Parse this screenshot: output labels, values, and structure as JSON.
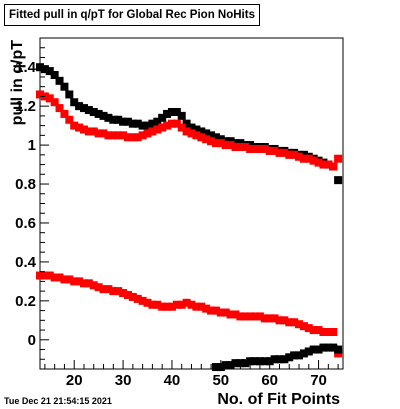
{
  "title": "Fitted pull in q/pT for Global Rec Pion NoHits",
  "timestamp": "Tue Dec 21 21:54:15 2021",
  "chart_data": {
    "type": "scatter",
    "title": "Fitted pull in q/pT for Global Rec Pion NoHits",
    "xlabel": "No. of Fit Points",
    "ylabel": "pull in q/pT",
    "xlim": [
      13,
      75
    ],
    "ylim": [
      -0.15,
      1.55
    ],
    "x_ticks": [
      "20",
      "30",
      "40",
      "50",
      "60",
      "70"
    ],
    "y_ticks": [
      "0",
      "0.2",
      "0.4",
      "0.6",
      "0.8",
      "1",
      "1.2",
      "1.4"
    ],
    "grid": false,
    "legend": "none",
    "series": [
      {
        "color": "#000000",
        "marker": "square",
        "points": [
          [
            13,
            1.4
          ],
          [
            14,
            1.39
          ],
          [
            15,
            1.38
          ],
          [
            16,
            1.36
          ],
          [
            17,
            1.33
          ],
          [
            18,
            1.3
          ],
          [
            19,
            1.26
          ],
          [
            20,
            1.22
          ],
          [
            21,
            1.2
          ],
          [
            22,
            1.19
          ],
          [
            23,
            1.18
          ],
          [
            24,
            1.17
          ],
          [
            25,
            1.16
          ],
          [
            26,
            1.15
          ],
          [
            27,
            1.14
          ],
          [
            28,
            1.13
          ],
          [
            29,
            1.13
          ],
          [
            30,
            1.12
          ],
          [
            31,
            1.12
          ],
          [
            32,
            1.11
          ],
          [
            33,
            1.11
          ],
          [
            34,
            1.1
          ],
          [
            35,
            1.1
          ],
          [
            36,
            1.11
          ],
          [
            37,
            1.12
          ],
          [
            38,
            1.14
          ],
          [
            39,
            1.16
          ],
          [
            40,
            1.17
          ],
          [
            41,
            1.17
          ],
          [
            42,
            1.15
          ],
          [
            43,
            1.11
          ],
          [
            44,
            1.09
          ],
          [
            45,
            1.08
          ],
          [
            46,
            1.07
          ],
          [
            47,
            1.06
          ],
          [
            48,
            1.05
          ],
          [
            49,
            1.04
          ],
          [
            50,
            1.03
          ],
          [
            51,
            1.02
          ],
          [
            52,
            1.02
          ],
          [
            53,
            1.01
          ],
          [
            54,
            1.01
          ],
          [
            55,
            1.0
          ],
          [
            56,
            1.0
          ],
          [
            57,
            0.99
          ],
          [
            58,
            0.99
          ],
          [
            59,
            0.99
          ],
          [
            60,
            0.98
          ],
          [
            61,
            0.98
          ],
          [
            62,
            0.97
          ],
          [
            63,
            0.97
          ],
          [
            64,
            0.96
          ],
          [
            65,
            0.96
          ],
          [
            66,
            0.95
          ],
          [
            67,
            0.95
          ],
          [
            68,
            0.94
          ],
          [
            69,
            0.93
          ],
          [
            70,
            0.92
          ],
          [
            71,
            0.91
          ],
          [
            72,
            0.9
          ],
          [
            73,
            0.89
          ],
          [
            74,
            0.82
          ]
        ]
      },
      {
        "color": "#ff0000",
        "marker": "square",
        "points": [
          [
            13,
            1.26
          ],
          [
            14,
            1.25
          ],
          [
            15,
            1.24
          ],
          [
            16,
            1.22
          ],
          [
            17,
            1.19
          ],
          [
            18,
            1.16
          ],
          [
            19,
            1.13
          ],
          [
            20,
            1.1
          ],
          [
            21,
            1.09
          ],
          [
            22,
            1.08
          ],
          [
            23,
            1.07
          ],
          [
            24,
            1.07
          ],
          [
            25,
            1.06
          ],
          [
            26,
            1.06
          ],
          [
            27,
            1.05
          ],
          [
            28,
            1.05
          ],
          [
            29,
            1.05
          ],
          [
            30,
            1.05
          ],
          [
            31,
            1.04
          ],
          [
            32,
            1.04
          ],
          [
            33,
            1.04
          ],
          [
            34,
            1.05
          ],
          [
            35,
            1.06
          ],
          [
            36,
            1.07
          ],
          [
            37,
            1.08
          ],
          [
            38,
            1.09
          ],
          [
            39,
            1.1
          ],
          [
            40,
            1.11
          ],
          [
            41,
            1.11
          ],
          [
            42,
            1.09
          ],
          [
            43,
            1.07
          ],
          [
            44,
            1.06
          ],
          [
            45,
            1.05
          ],
          [
            46,
            1.04
          ],
          [
            47,
            1.03
          ],
          [
            48,
            1.02
          ],
          [
            49,
            1.01
          ],
          [
            50,
            1.01
          ],
          [
            51,
            1.0
          ],
          [
            52,
            1.0
          ],
          [
            53,
            0.99
          ],
          [
            54,
            0.99
          ],
          [
            55,
            0.99
          ],
          [
            56,
            0.98
          ],
          [
            57,
            0.98
          ],
          [
            58,
            0.98
          ],
          [
            59,
            0.98
          ],
          [
            60,
            0.97
          ],
          [
            61,
            0.97
          ],
          [
            62,
            0.96
          ],
          [
            63,
            0.96
          ],
          [
            64,
            0.95
          ],
          [
            65,
            0.95
          ],
          [
            66,
            0.94
          ],
          [
            67,
            0.93
          ],
          [
            68,
            0.93
          ],
          [
            69,
            0.92
          ],
          [
            70,
            0.91
          ],
          [
            71,
            0.9
          ],
          [
            72,
            0.9
          ],
          [
            73,
            0.89
          ],
          [
            74,
            0.93
          ]
        ]
      },
      {
        "color": "#ff0000",
        "marker": "square",
        "points": [
          [
            13,
            0.33
          ],
          [
            14,
            0.33
          ],
          [
            15,
            0.33
          ],
          [
            16,
            0.32
          ],
          [
            17,
            0.32
          ],
          [
            18,
            0.31
          ],
          [
            19,
            0.31
          ],
          [
            20,
            0.3
          ],
          [
            21,
            0.3
          ],
          [
            22,
            0.29
          ],
          [
            23,
            0.29
          ],
          [
            24,
            0.28
          ],
          [
            25,
            0.27
          ],
          [
            26,
            0.26
          ],
          [
            27,
            0.26
          ],
          [
            28,
            0.25
          ],
          [
            29,
            0.25
          ],
          [
            30,
            0.24
          ],
          [
            31,
            0.23
          ],
          [
            32,
            0.22
          ],
          [
            33,
            0.21
          ],
          [
            34,
            0.2
          ],
          [
            35,
            0.19
          ],
          [
            36,
            0.18
          ],
          [
            37,
            0.18
          ],
          [
            38,
            0.17
          ],
          [
            39,
            0.17
          ],
          [
            40,
            0.17
          ],
          [
            41,
            0.18
          ],
          [
            42,
            0.18
          ],
          [
            43,
            0.19
          ],
          [
            44,
            0.18
          ],
          [
            45,
            0.17
          ],
          [
            46,
            0.17
          ],
          [
            47,
            0.16
          ],
          [
            48,
            0.15
          ],
          [
            49,
            0.15
          ],
          [
            50,
            0.14
          ],
          [
            51,
            0.14
          ],
          [
            52,
            0.13
          ],
          [
            53,
            0.13
          ],
          [
            54,
            0.12
          ],
          [
            55,
            0.12
          ],
          [
            56,
            0.12
          ],
          [
            57,
            0.12
          ],
          [
            58,
            0.12
          ],
          [
            59,
            0.11
          ],
          [
            60,
            0.11
          ],
          [
            61,
            0.11
          ],
          [
            62,
            0.1
          ],
          [
            63,
            0.1
          ],
          [
            64,
            0.09
          ],
          [
            65,
            0.09
          ],
          [
            66,
            0.08
          ],
          [
            67,
            0.07
          ],
          [
            68,
            0.06
          ],
          [
            69,
            0.05
          ],
          [
            70,
            0.05
          ],
          [
            71,
            0.04
          ],
          [
            72,
            0.04
          ],
          [
            73,
            0.04
          ],
          [
            74,
            -0.07
          ]
        ]
      },
      {
        "color": "#000000",
        "marker": "square",
        "points": [
          [
            49,
            -0.14
          ],
          [
            50,
            -0.14
          ],
          [
            51,
            -0.13
          ],
          [
            52,
            -0.13
          ],
          [
            53,
            -0.12
          ],
          [
            54,
            -0.12
          ],
          [
            55,
            -0.12
          ],
          [
            56,
            -0.11
          ],
          [
            57,
            -0.11
          ],
          [
            58,
            -0.11
          ],
          [
            59,
            -0.11
          ],
          [
            60,
            -0.11
          ],
          [
            61,
            -0.1
          ],
          [
            62,
            -0.1
          ],
          [
            63,
            -0.1
          ],
          [
            64,
            -0.09
          ],
          [
            65,
            -0.08
          ],
          [
            66,
            -0.08
          ],
          [
            67,
            -0.07
          ],
          [
            68,
            -0.06
          ],
          [
            69,
            -0.05
          ],
          [
            70,
            -0.05
          ],
          [
            71,
            -0.04
          ],
          [
            72,
            -0.04
          ],
          [
            73,
            -0.04
          ],
          [
            74,
            -0.05
          ]
        ]
      }
    ]
  }
}
